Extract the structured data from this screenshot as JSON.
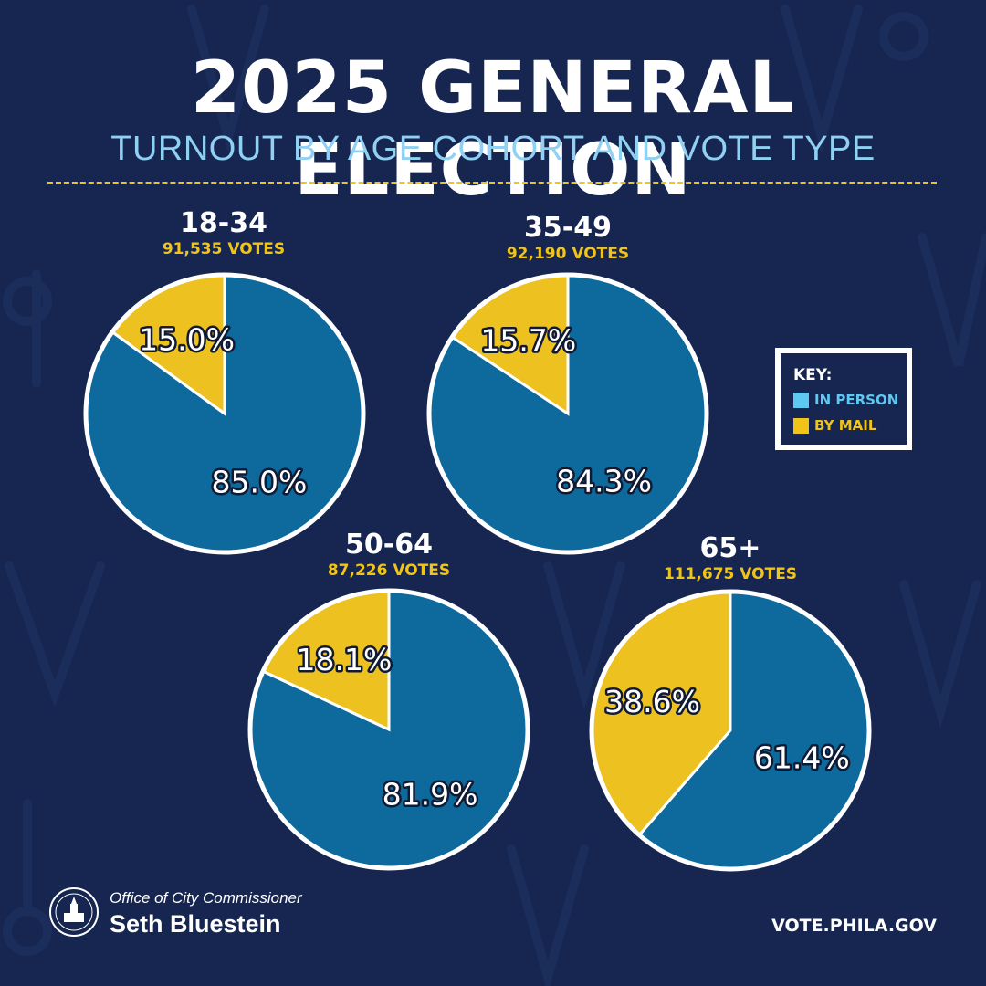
{
  "header": {
    "title": "2025 GENERAL ELECTION",
    "subtitle": "TURNOUT BY AGE COHORT AND VOTE TYPE"
  },
  "colors": {
    "background": "#172650",
    "in_person": "#0e6a9d",
    "by_mail": "#edc11f",
    "accent": "#f0c419",
    "subtitle": "#8fd0f3",
    "key_in_person": "#5ec8f2",
    "key_by_mail": "#f0c419"
  },
  "key": {
    "title": "KEY:",
    "in_person": "IN PERSON",
    "by_mail": "BY MAIL"
  },
  "chart_data": [
    {
      "type": "pie",
      "title": "18-34",
      "subtitle": "91,535 VOTES",
      "categories": [
        "IN PERSON",
        "BY MAIL"
      ],
      "values": [
        85.0,
        15.0
      ],
      "labels": [
        "85.0%",
        "15.0%"
      ]
    },
    {
      "type": "pie",
      "title": "35-49",
      "subtitle": "92,190 VOTES",
      "categories": [
        "IN PERSON",
        "BY MAIL"
      ],
      "values": [
        84.3,
        15.7
      ],
      "labels": [
        "84.3%",
        "15.7%"
      ]
    },
    {
      "type": "pie",
      "title": "50-64",
      "subtitle": "87,226 VOTES",
      "categories": [
        "IN PERSON",
        "BY MAIL"
      ],
      "values": [
        81.9,
        18.1
      ],
      "labels": [
        "81.9%",
        "18.1%"
      ]
    },
    {
      "type": "pie",
      "title": "65+",
      "subtitle": "111,675 VOTES",
      "categories": [
        "IN PERSON",
        "BY MAIL"
      ],
      "values": [
        61.4,
        38.6
      ],
      "labels": [
        "61.4%",
        "38.6%"
      ]
    }
  ],
  "footer": {
    "office": "Office of City Commissioner",
    "name": "Seth Bluestein",
    "website": "VOTE.PHILA.GOV",
    "seal_icon": "city-hall-seal-icon"
  }
}
